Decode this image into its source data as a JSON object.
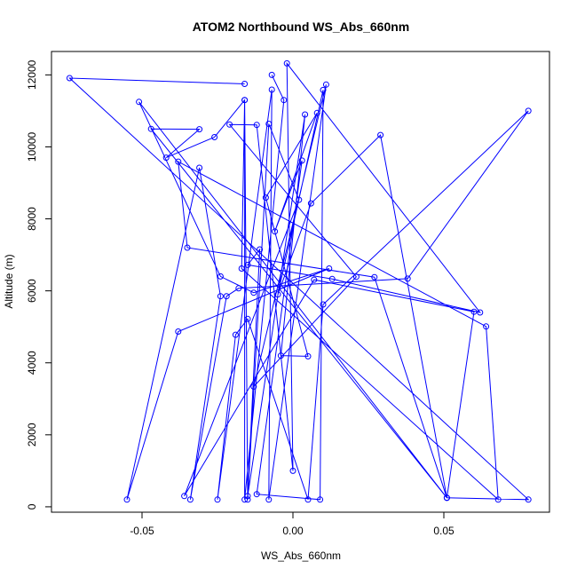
{
  "chart_data": {
    "type": "line",
    "title": "ATOM2 Northbound WS_Abs_660nm",
    "xlabel": "WS_Abs_660nm",
    "ylabel": "Altitude (m)",
    "xlim": [
      -0.08,
      0.085
    ],
    "ylim": [
      -150,
      12650
    ],
    "x_ticks": [
      -0.05,
      0.0,
      0.05
    ],
    "x_tick_labels": [
      "-0.05",
      "0.00",
      "0.05"
    ],
    "y_ticks": [
      0,
      2000,
      4000,
      6000,
      8000,
      10000,
      12000
    ],
    "y_tick_labels": [
      "0",
      "2000",
      "4000",
      "6000",
      "8000",
      "10000",
      "12000"
    ],
    "grid": false,
    "legend": "none",
    "series_color": "#0000ff",
    "marker": "open-circle",
    "series": [
      {
        "points": [
          [
            -0.016,
            11750
          ],
          [
            -0.074,
            11910
          ],
          [
            0.078,
            200
          ],
          [
            0.051,
            250
          ],
          [
            -0.051,
            11250
          ],
          [
            -0.024,
            6400
          ],
          [
            -0.013,
            5950
          ],
          [
            0.012,
            6620
          ],
          [
            -0.038,
            4870
          ],
          [
            -0.055,
            200
          ],
          [
            -0.031,
            9420
          ],
          [
            -0.024,
            5850
          ],
          [
            -0.034,
            200
          ],
          [
            -0.022,
            5850
          ],
          [
            -0.018,
            6070
          ],
          [
            0.038,
            6340
          ],
          [
            0.078,
            11000
          ],
          [
            0.01,
            5620
          ],
          [
            0.005,
            200
          ],
          [
            -0.015,
            5220
          ],
          [
            -0.019,
            4780
          ],
          [
            -0.025,
            200
          ],
          [
            -0.007,
            11590
          ],
          [
            -0.008,
            200
          ],
          [
            0.011,
            11730
          ],
          [
            -0.013,
            3340
          ],
          [
            0.021,
            6390
          ],
          [
            -0.021,
            10620
          ],
          [
            -0.012,
            10610
          ],
          [
            0.0,
            1000
          ],
          [
            -0.002,
            12320
          ],
          [
            0.062,
            5400
          ],
          [
            0.013,
            6330
          ],
          [
            -0.015,
            6720
          ],
          [
            -0.011,
            7150
          ],
          [
            -0.015,
            300
          ],
          [
            0.004,
            10900
          ],
          [
            -0.004,
            4200
          ],
          [
            0.005,
            4180
          ],
          [
            -0.009,
            8590
          ],
          [
            0.008,
            10940
          ],
          [
            -0.006,
            7650
          ],
          [
            0.003,
            9620
          ],
          [
            -0.012,
            350
          ],
          [
            0.009,
            200
          ],
          [
            0.01,
            11580
          ],
          [
            -0.005,
            5900
          ],
          [
            0.006,
            8430
          ],
          [
            0.029,
            10330
          ],
          [
            0.051,
            250
          ],
          [
            -0.047,
            10500
          ],
          [
            -0.031,
            10490
          ],
          [
            -0.042,
            9700
          ],
          [
            -0.026,
            10270
          ],
          [
            -0.016,
            11300
          ],
          [
            -0.017,
            6620
          ],
          [
            0.068,
            200
          ],
          [
            0.064,
            5010
          ],
          [
            -0.038,
            9590
          ],
          [
            -0.035,
            7200
          ],
          [
            0.027,
            6380
          ],
          [
            0.051,
            250
          ],
          [
            0.06,
            5420
          ],
          [
            0.007,
            6310
          ],
          [
            -0.036,
            300
          ],
          [
            0.002,
            8530
          ],
          [
            -0.008,
            10640
          ],
          [
            -0.015,
            200
          ],
          [
            -0.016,
            11300
          ],
          [
            -0.016,
            200
          ],
          [
            -0.003,
            11300
          ],
          [
            -0.007,
            12000
          ]
        ]
      }
    ]
  }
}
